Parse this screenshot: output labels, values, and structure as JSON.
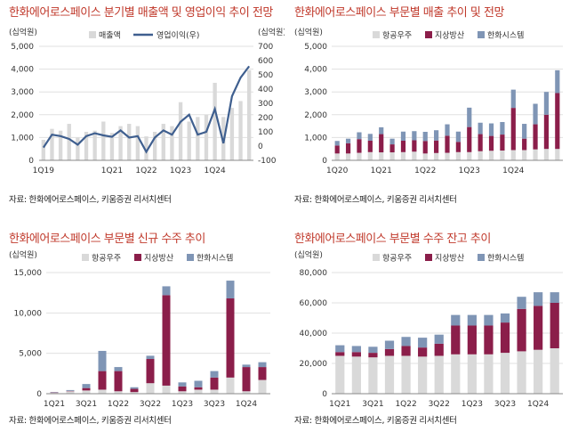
{
  "colors": {
    "aerospace": "#d9d9d9",
    "defense": "#8b1e4a",
    "systems": "#7f95b5",
    "sales": "#d9d9d9",
    "op": "#3f5f8f",
    "title": "#c0392b"
  },
  "chart_data": [
    {
      "type": "bar",
      "title": "한화에어로스페이스 분기별 매출액 및 영업이익 추이 전망",
      "source": "자료: 한화에어로스페이스, 키움증권 리서치센터",
      "y_unit_left": "(십억원)",
      "y_unit_right": "(십억원)",
      "x_ticks": [
        "1Q19",
        "1Q21",
        "1Q22",
        "1Q23",
        "1Q24"
      ],
      "x_tick_index": [
        0,
        8,
        12,
        16,
        20
      ],
      "ylim_left": [
        0,
        5000
      ],
      "y_ticks_left": [
        "0",
        "1,000",
        "2,000",
        "3,000",
        "4,000",
        "5,000"
      ],
      "ylim_right": [
        -100,
        700
      ],
      "y_ticks_right": [
        "-100",
        "0",
        "100",
        "200",
        "300",
        "400",
        "500",
        "600",
        "700"
      ],
      "series": [
        {
          "name": "매출액",
          "type": "bar",
          "values": [
            900,
            1380,
            1300,
            1600,
            1000,
            1250,
            1300,
            1700,
            1200,
            1500,
            1600,
            1500,
            1050,
            1250,
            1600,
            1500,
            2550,
            1700,
            1900,
            2000,
            3400,
            1900,
            2300,
            2600,
            3950
          ]
        },
        {
          "name": "영업이익(우)",
          "type": "line",
          "values": [
            -10,
            80,
            70,
            50,
            10,
            70,
            90,
            75,
            65,
            110,
            60,
            70,
            -40,
            60,
            110,
            80,
            170,
            220,
            80,
            100,
            260,
            20,
            350,
            480,
            560
          ]
        }
      ]
    },
    {
      "type": "bar",
      "stacked": true,
      "title": "한화에어로스페이스 부문별 매출 추이 및 전망",
      "source": "자료: 한화에어로스페이스, 키움증권 리서치센터",
      "y_unit": "(십억원)",
      "x_ticks": [
        "1Q20",
        "1Q21",
        "1Q22",
        "1Q23",
        "1Q24"
      ],
      "x_tick_index": [
        0,
        4,
        8,
        12,
        16
      ],
      "ylim": [
        0,
        5000
      ],
      "y_ticks": [
        "0",
        "1,000",
        "2,000",
        "3,000",
        "4,000",
        "5,000"
      ],
      "series": [
        {
          "name": "항공우주",
          "values": [
            300,
            300,
            330,
            360,
            350,
            350,
            360,
            380,
            300,
            320,
            330,
            360,
            360,
            400,
            420,
            430,
            450,
            450,
            480,
            500,
            500
          ]
        },
        {
          "name": "지상방산",
          "values": [
            350,
            450,
            600,
            500,
            800,
            350,
            500,
            500,
            550,
            550,
            750,
            450,
            1100,
            750,
            650,
            700,
            1850,
            500,
            1100,
            1500,
            2450
          ]
        },
        {
          "name": "한화시스템",
          "values": [
            200,
            200,
            300,
            300,
            300,
            250,
            400,
            400,
            400,
            450,
            500,
            450,
            850,
            500,
            550,
            550,
            800,
            650,
            900,
            1000,
            1000
          ]
        }
      ]
    },
    {
      "type": "bar",
      "stacked": true,
      "title": "한화에어로스페이스 부문별 신규 수주 추이",
      "source": "자료: 한화에어로스페이스, 키움증권 리서치센터",
      "y_unit": "(십억원)",
      "x_ticks": [
        "1Q21",
        "3Q21",
        "1Q22",
        "3Q22",
        "1Q23",
        "3Q23",
        "1Q24"
      ],
      "x_tick_index": [
        0,
        2,
        4,
        6,
        8,
        10,
        12
      ],
      "ylim": [
        0,
        15000
      ],
      "y_ticks": [
        "0",
        "5,000",
        "10,000",
        "15,000"
      ],
      "series": [
        {
          "name": "항공우주",
          "values": [
            100,
            300,
            400,
            500,
            300,
            200,
            1300,
            1000,
            300,
            500,
            500,
            2000,
            300,
            1700
          ]
        },
        {
          "name": "지상방산",
          "values": [
            50,
            50,
            300,
            2300,
            2500,
            400,
            3000,
            11200,
            600,
            300,
            1500,
            9800,
            3000,
            1600
          ]
        },
        {
          "name": "한화시스템",
          "values": [
            50,
            100,
            500,
            2500,
            500,
            200,
            400,
            1100,
            500,
            800,
            800,
            2200,
            300,
            600
          ]
        }
      ]
    },
    {
      "type": "bar",
      "stacked": true,
      "title": "한화에어로스페이스 부문별 수주 잔고 추이",
      "source": "자료: 한화에어로스페이스, 키움증권 리서치센터",
      "y_unit": "(십억원)",
      "x_ticks": [
        "1Q21",
        "3Q21",
        "1Q22",
        "3Q22",
        "1Q23",
        "3Q23",
        "1Q24"
      ],
      "x_tick_index": [
        0,
        2,
        4,
        6,
        8,
        10,
        12
      ],
      "ylim": [
        0,
        80000
      ],
      "y_ticks": [
        "0",
        "20,000",
        "40,000",
        "60,000",
        "80,000"
      ],
      "series": [
        {
          "name": "항공우주",
          "values": [
            25000,
            24500,
            24000,
            25000,
            25000,
            24500,
            25000,
            26000,
            26000,
            26000,
            27000,
            28000,
            29000,
            30000
          ]
        },
        {
          "name": "지상방산",
          "values": [
            2500,
            3000,
            3000,
            4500,
            6500,
            6000,
            8000,
            19000,
            19000,
            19000,
            20000,
            28000,
            29000,
            30000
          ]
        },
        {
          "name": "한화시스템",
          "values": [
            4500,
            4000,
            4000,
            5500,
            6000,
            6500,
            6000,
            7000,
            7000,
            7000,
            6000,
            8000,
            9000,
            7000
          ]
        }
      ]
    }
  ]
}
